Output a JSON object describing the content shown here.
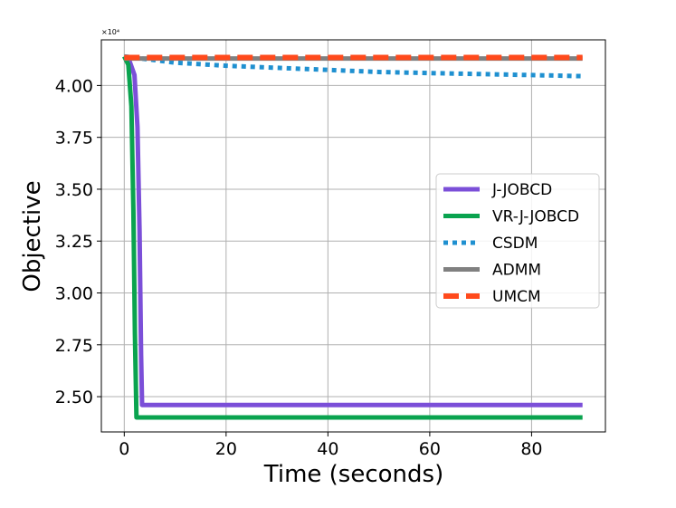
{
  "chart_data": {
    "type": "line",
    "title": "",
    "xlabel": "Time (seconds)",
    "ylabel": "Objective",
    "y_multiplier_label": "×10⁴",
    "xlim": [
      -4.5,
      94.5
    ],
    "ylim": [
      2.33,
      4.22
    ],
    "xticks": [
      0,
      20,
      40,
      60,
      80
    ],
    "yticks": [
      2.5,
      2.75,
      3.0,
      3.25,
      3.5,
      3.75,
      4.0
    ],
    "ytick_labels": [
      "2.50",
      "2.75",
      "3.00",
      "3.25",
      "3.50",
      "3.75",
      "4.00"
    ],
    "grid": true,
    "legend_position": "center-right",
    "series": [
      {
        "name": "J-JOBCD",
        "color": "#7b4fd8",
        "style": "solid",
        "width": 5,
        "points": [
          [
            0,
            4.14
          ],
          [
            1.0,
            4.12
          ],
          [
            2.0,
            4.05
          ],
          [
            2.6,
            3.8
          ],
          [
            3.0,
            3.3
          ],
          [
            3.3,
            2.7
          ],
          [
            3.5,
            2.46
          ],
          [
            90,
            2.46
          ]
        ]
      },
      {
        "name": "VR-J-JOBCD",
        "color": "#0aa34f",
        "style": "solid",
        "width": 5,
        "points": [
          [
            0,
            4.14
          ],
          [
            0.8,
            4.1
          ],
          [
            1.4,
            3.9
          ],
          [
            1.8,
            3.4
          ],
          [
            2.1,
            2.8
          ],
          [
            2.4,
            2.4
          ],
          [
            90,
            2.4
          ]
        ]
      },
      {
        "name": "CSDM",
        "color": "#1f90d0",
        "style": "dotted",
        "width": 5,
        "points": [
          [
            0,
            4.14
          ],
          [
            10,
            4.11
          ],
          [
            20,
            4.095
          ],
          [
            30,
            4.085
          ],
          [
            40,
            4.075
          ],
          [
            50,
            4.065
          ],
          [
            60,
            4.06
          ],
          [
            70,
            4.055
          ],
          [
            80,
            4.05
          ],
          [
            90,
            4.045
          ]
        ]
      },
      {
        "name": "ADMM",
        "color": "#808080",
        "style": "solid",
        "width": 5,
        "points": [
          [
            0,
            4.13
          ],
          [
            90,
            4.13
          ]
        ]
      },
      {
        "name": "UMCM",
        "color": "#ff4a1c",
        "style": "dashed",
        "width": 6,
        "points": [
          [
            0,
            4.135
          ],
          [
            90,
            4.135
          ]
        ]
      }
    ]
  }
}
